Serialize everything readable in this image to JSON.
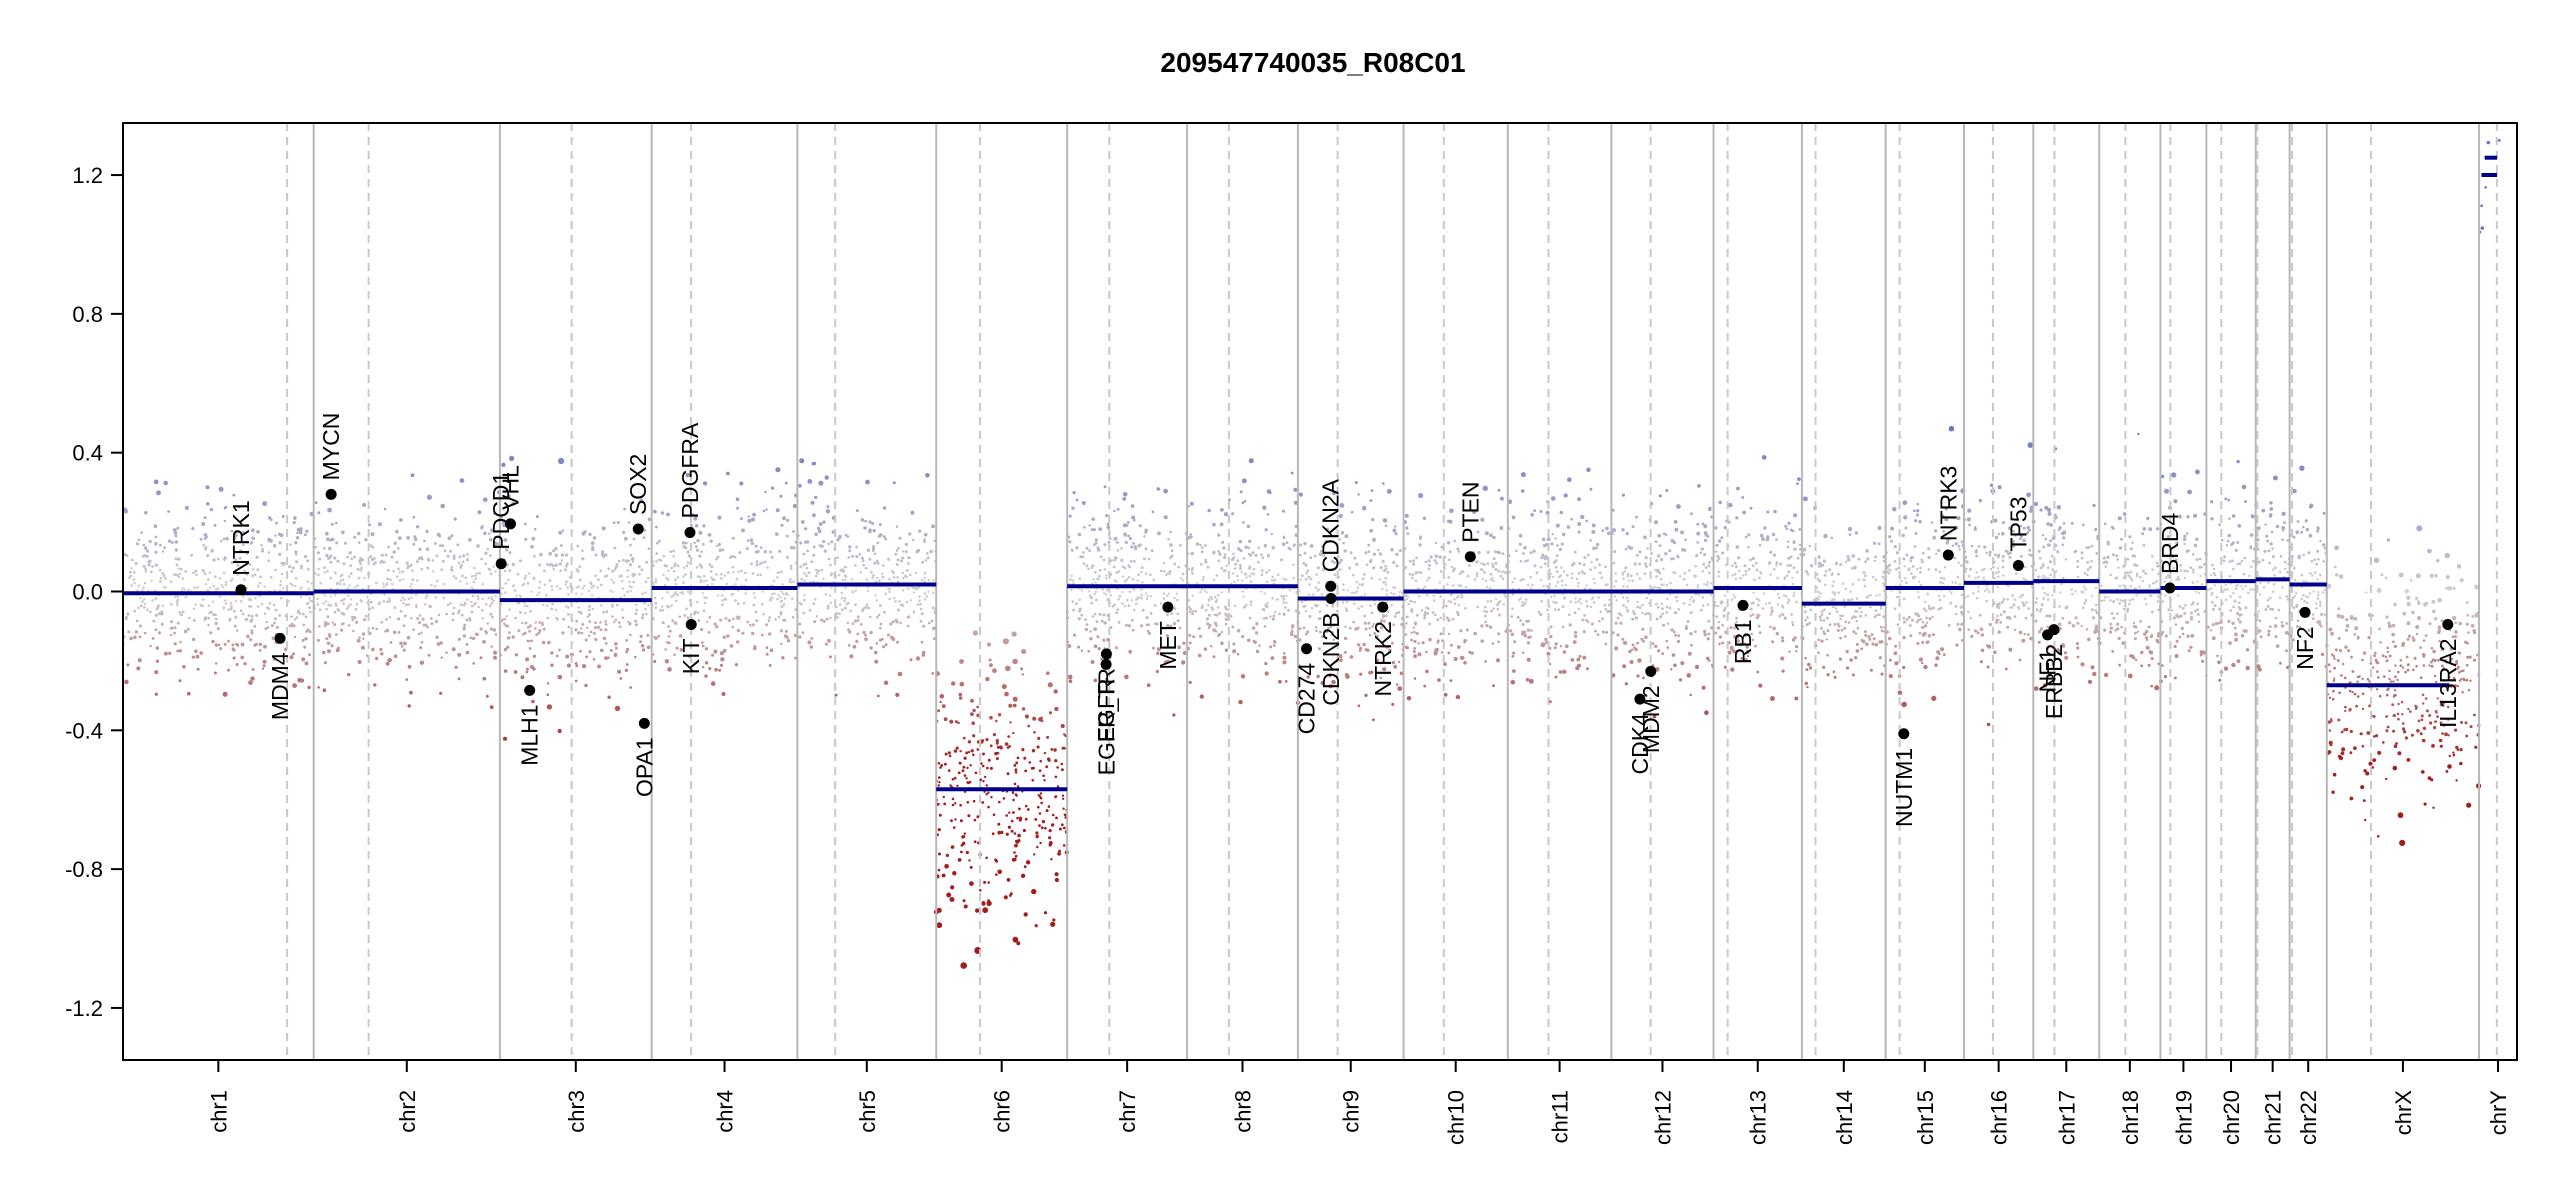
{
  "chart_data": {
    "type": "scatter",
    "title": "209547740035_R08C01",
    "ylim": [
      -1.35,
      1.35
    ],
    "yticks": [
      -1.2,
      -0.8,
      -0.4,
      0.0,
      0.4,
      0.8,
      1.2
    ],
    "ytick_labels": [
      "-1.2",
      "-0.8",
      "-0.4",
      "0.0",
      "0.4",
      "0.8",
      "1.2"
    ],
    "grid": false,
    "colors": {
      "gain": "#6a6fbc",
      "loss": "#a21d1d",
      "neutral": "#cfcfcf",
      "segment": "#00008b",
      "gene_point": "#000000",
      "chrom_line": "#b8b8b8",
      "centromere_line": "#c8c8c8"
    },
    "chromosomes": [
      {
        "name": "chr1",
        "start": 0,
        "end": 1191,
        "centro": 1025,
        "segments": [
          {
            "start": 0,
            "end": 1191,
            "value": -0.005
          }
        ]
      },
      {
        "name": "chr2",
        "start": 1191,
        "end": 2354,
        "centro": 1534,
        "segments": [
          {
            "start": 1191,
            "end": 2354,
            "value": 0.0
          }
        ]
      },
      {
        "name": "chr3",
        "start": 2354,
        "end": 3302,
        "centro": 2802,
        "segments": [
          {
            "start": 2354,
            "end": 3302,
            "value": -0.025
          }
        ]
      },
      {
        "name": "chr4",
        "start": 3302,
        "end": 4212,
        "centro": 3548,
        "segments": [
          {
            "start": 3302,
            "end": 4212,
            "value": 0.01
          }
        ]
      },
      {
        "name": "chr5",
        "start": 4212,
        "end": 5079,
        "centro": 4448,
        "segments": [
          {
            "start": 4212,
            "end": 5079,
            "value": 0.02
          }
        ]
      },
      {
        "name": "chr6",
        "start": 5079,
        "end": 5897,
        "centro": 5353,
        "segments": [
          {
            "start": 5079,
            "end": 5897,
            "value": -0.57
          }
        ]
      },
      {
        "name": "chr7",
        "start": 5897,
        "end": 6646,
        "centro": 6160,
        "segments": [
          {
            "start": 5897,
            "end": 6646,
            "value": 0.015
          }
        ]
      },
      {
        "name": "chr8",
        "start": 6646,
        "end": 7338,
        "centro": 6907,
        "segments": [
          {
            "start": 6646,
            "end": 7338,
            "value": 0.015
          }
        ]
      },
      {
        "name": "chr9",
        "start": 7338,
        "end": 7998,
        "centro": 7586,
        "segments": [
          {
            "start": 7338,
            "end": 7998,
            "value": -0.02
          }
        ]
      },
      {
        "name": "chr10",
        "start": 7998,
        "end": 8649,
        "centro": 8249,
        "segments": [
          {
            "start": 7998,
            "end": 8649,
            "value": 0.0
          }
        ]
      },
      {
        "name": "chr11",
        "start": 8649,
        "end": 9296,
        "centro": 8903,
        "segments": [
          {
            "start": 8649,
            "end": 9296,
            "value": 0.0
          }
        ]
      },
      {
        "name": "chr12",
        "start": 9296,
        "end": 9934,
        "centro": 9541,
        "segments": [
          {
            "start": 9296,
            "end": 9934,
            "value": 0.0
          }
        ]
      },
      {
        "name": "chr13",
        "start": 9934,
        "end": 10486,
        "centro": 10022,
        "segments": [
          {
            "start": 9934,
            "end": 10486,
            "value": 0.01
          }
        ]
      },
      {
        "name": "chr14",
        "start": 10486,
        "end": 11009,
        "centro": 10571,
        "segments": [
          {
            "start": 10486,
            "end": 11009,
            "value": -0.035
          }
        ]
      },
      {
        "name": "chr15",
        "start": 11009,
        "end": 11498,
        "centro": 11096,
        "segments": [
          {
            "start": 11009,
            "end": 11498,
            "value": 0.01
          }
        ]
      },
      {
        "name": "chr16",
        "start": 11498,
        "end": 11931,
        "centro": 11679,
        "segments": [
          {
            "start": 11498,
            "end": 11931,
            "value": 0.025
          }
        ]
      },
      {
        "name": "chr17",
        "start": 11931,
        "end": 12343,
        "centro": 12063,
        "segments": [
          {
            "start": 11931,
            "end": 12343,
            "value": 0.03
          }
        ]
      },
      {
        "name": "chr18",
        "start": 12343,
        "end": 12725,
        "centro": 12506,
        "segments": [
          {
            "start": 12343,
            "end": 12725,
            "value": 0.0
          }
        ]
      },
      {
        "name": "chr19",
        "start": 12725,
        "end": 13012,
        "centro": 12787,
        "segments": [
          {
            "start": 12725,
            "end": 13012,
            "value": 0.01
          }
        ]
      },
      {
        "name": "chr20",
        "start": 13012,
        "end": 13320,
        "centro": 13105,
        "segments": [
          {
            "start": 13012,
            "end": 13320,
            "value": 0.03
          }
        ]
      },
      {
        "name": "chr21",
        "start": 13320,
        "end": 13532,
        "centro": 13331,
        "segments": [
          {
            "start": 13320,
            "end": 13532,
            "value": 0.035
          }
        ]
      },
      {
        "name": "chr22",
        "start": 13532,
        "end": 13764,
        "centro": 13547,
        "segments": [
          {
            "start": 13532,
            "end": 13764,
            "value": 0.02
          }
        ]
      },
      {
        "name": "chrX",
        "start": 13764,
        "end": 14715,
        "centro": 14040,
        "segments": [
          {
            "start": 13764,
            "end": 14530,
            "value": -0.27
          }
        ]
      },
      {
        "name": "chrY",
        "start": 14715,
        "end": 14952,
        "centro": 14826,
        "segments": [
          {
            "start": 14730,
            "end": 14828,
            "value": 1.2
          },
          {
            "start": 14750,
            "end": 14828,
            "value": 1.25
          }
        ]
      }
    ],
    "genes": [
      {
        "name": "NTRK1",
        "x": 737,
        "y": 0.005,
        "label": "above"
      },
      {
        "name": "MDM4",
        "x": 981,
        "y": -0.135,
        "label": "below"
      },
      {
        "name": "MYCN",
        "x": 1300,
        "y": 0.28,
        "label": "above"
      },
      {
        "name": "PDCD1",
        "x": 2362,
        "y": 0.08,
        "label": "above"
      },
      {
        "name": "VHL",
        "x": 2420,
        "y": 0.195,
        "label": "above"
      },
      {
        "name": "MLH1",
        "x": 2540,
        "y": -0.285,
        "label": "below"
      },
      {
        "name": "SOX2",
        "x": 3218,
        "y": 0.18,
        "label": "above"
      },
      {
        "name": "OPA1",
        "x": 3256,
        "y": -0.38,
        "label": "below"
      },
      {
        "name": "PDGFRA",
        "x": 3541,
        "y": 0.17,
        "label": "above"
      },
      {
        "name": "KIT",
        "x": 3549,
        "y": -0.095,
        "label": "below"
      },
      {
        "name": "EGFR",
        "x": 6140,
        "y": -0.21,
        "label": "below"
      },
      {
        "name": "EGFR_TR",
        "x": 6142,
        "y": -0.18,
        "label": "below"
      },
      {
        "name": "MET",
        "x": 6526,
        "y": -0.045,
        "label": "below"
      },
      {
        "name": "CD274",
        "x": 7392,
        "y": -0.165,
        "label": "below"
      },
      {
        "name": "CDKN2A",
        "x": 7543,
        "y": 0.015,
        "label": "above"
      },
      {
        "name": "CDKN2B",
        "x": 7545,
        "y": -0.02,
        "label": "below"
      },
      {
        "name": "NTRK2",
        "x": 7868,
        "y": -0.045,
        "label": "below"
      },
      {
        "name": "PTEN",
        "x": 8415,
        "y": 0.1,
        "label": "above"
      },
      {
        "name": "CDK4",
        "x": 9474,
        "y": -0.31,
        "label": "below"
      },
      {
        "name": "MDM2",
        "x": 9542,
        "y": -0.23,
        "label": "below"
      },
      {
        "name": "RB1",
        "x": 10118,
        "y": -0.04,
        "label": "below"
      },
      {
        "name": "NUTM1",
        "x": 11122,
        "y": -0.41,
        "label": "below"
      },
      {
        "name": "NTRK3",
        "x": 11400,
        "y": 0.105,
        "label": "above"
      },
      {
        "name": "TP53",
        "x": 11838,
        "y": 0.075,
        "label": "above"
      },
      {
        "name": "NF1",
        "x": 12020,
        "y": -0.125,
        "label": "below"
      },
      {
        "name": "ERBB2",
        "x": 12060,
        "y": -0.11,
        "label": "below"
      },
      {
        "name": "BRD4",
        "x": 12784,
        "y": 0.01,
        "label": "above"
      },
      {
        "name": "NF2",
        "x": 13628,
        "y": -0.06,
        "label": "below"
      },
      {
        "name": "IL13RA2",
        "x": 14520,
        "y": -0.095,
        "label": "below"
      }
    ]
  }
}
